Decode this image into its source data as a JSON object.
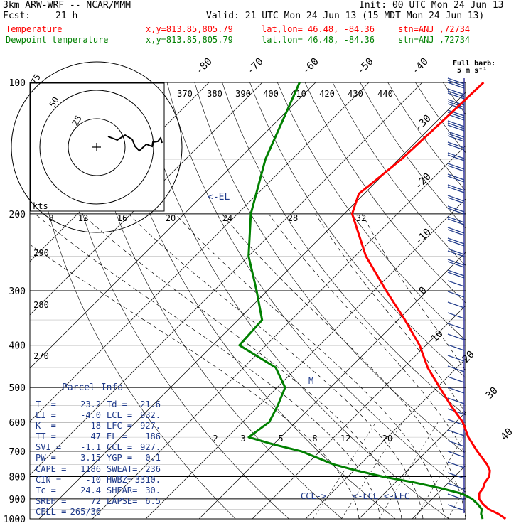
{
  "header": {
    "line1_left": "3km ARW-WRF -- NCAR/MMM",
    "line1_right": "Init: 00 UTC Mon 24 Jun 13",
    "fcst_label": "Fcst:",
    "fcst_value": "21 h",
    "valid": "Valid: 21 UTC Mon 24 Jun 13 (15 MDT Mon 24 Jun 13)",
    "temp_label": "Temperature",
    "dew_label": "Dewpoint temperature",
    "xy": "x,y=813.85,805.79",
    "latlon": "lat,lon= 46.48, -84.36",
    "stn": "stn=ANJ ,72734"
  },
  "colors": {
    "temperature": "#ff0000",
    "dewpoint": "#008000",
    "parcel_text": "#1f3a8a",
    "grid": "#000000"
  },
  "barb_legend": {
    "title": "Full barb:",
    "value": "5 m s⁻¹"
  },
  "hodograph": {
    "rings": [
      "75",
      "50",
      "25"
    ],
    "units": "kts"
  },
  "parcel_info": {
    "title": "Parcel Info",
    "rows": [
      [
        "T  =",
        "23.2",
        "Td =",
        "21.6"
      ],
      [
        "LI =",
        "-4.0",
        "LCL =",
        "932."
      ],
      [
        "K  =",
        "18",
        "LFC =",
        "927."
      ],
      [
        "TT =",
        "47",
        "EL =",
        "186"
      ],
      [
        "SVI =",
        "-1.1",
        "CCL =",
        "927."
      ],
      [
        "PW =",
        "3.15",
        "YGP =",
        "0.1"
      ],
      [
        "CAPE =",
        "1186",
        "SWEAT=",
        "236"
      ],
      [
        "CIN =",
        "-10",
        "HWBZ=",
        "3310."
      ],
      [
        "Tc =",
        "24.4",
        "SHEAR=",
        "30."
      ],
      [
        "SREH =",
        "72",
        "LAPSE=",
        "6.5"
      ],
      [
        "CELL =",
        "265/36",
        "",
        ""
      ]
    ]
  },
  "annotations": {
    "el": "EL",
    "ccl": "CCL",
    "lcl": "LCL",
    "lfc": "LFC",
    "m_marker": "M"
  },
  "chart_data": {
    "type": "line",
    "title": "Skew-T log-P sounding",
    "pressure_ticks": [
      100,
      200,
      300,
      400,
      500,
      600,
      700,
      800,
      900,
      1000
    ],
    "isotherm_labels": [
      "-80",
      "-70",
      "-60",
      "-50",
      "-40",
      "-30",
      "-20",
      "-10",
      "0",
      "10",
      "20",
      "30",
      "40"
    ],
    "theta_labels": [
      "370",
      "380",
      "390",
      "400",
      "410",
      "420",
      "430",
      "440"
    ],
    "left_theta_labels": [
      "290",
      "280",
      "270"
    ],
    "mixing_ratio_labels": [
      "8",
      "12",
      "16",
      "20",
      "24",
      "28",
      "32"
    ],
    "lower_mixing_labels": [
      "2",
      "3",
      "5",
      "8",
      "12",
      "20"
    ],
    "series": [
      {
        "name": "Temperature",
        "color": "#ff0000",
        "points": [
          [
            1000,
            27.5
          ],
          [
            975,
            25.3
          ],
          [
            950,
            22.5
          ],
          [
            925,
            20.5
          ],
          [
            900,
            18.8
          ],
          [
            875,
            17.8
          ],
          [
            850,
            17.5
          ],
          [
            825,
            16.8
          ],
          [
            800,
            16.5
          ],
          [
            775,
            15.5
          ],
          [
            750,
            13.8
          ],
          [
            700,
            9.5
          ],
          [
            650,
            5.2
          ],
          [
            600,
            1.3
          ],
          [
            550,
            -4.0
          ],
          [
            500,
            -9.5
          ],
          [
            450,
            -15.5
          ],
          [
            400,
            -21.2
          ],
          [
            350,
            -28.7
          ],
          [
            300,
            -37.7
          ],
          [
            250,
            -48.0
          ],
          [
            200,
            -58.5
          ],
          [
            180,
            -61.0
          ],
          [
            170,
            -60.5
          ],
          [
            150,
            -59.5
          ],
          [
            125,
            -59.0
          ],
          [
            100,
            -58.5
          ]
        ]
      },
      {
        "name": "Dewpoint temperature",
        "color": "#008000",
        "points": [
          [
            1000,
            23.2
          ],
          [
            975,
            22.0
          ],
          [
            950,
            21.2
          ],
          [
            925,
            19.5
          ],
          [
            900,
            17.5
          ],
          [
            875,
            14.5
          ],
          [
            850,
            9.5
          ],
          [
            825,
            3.5
          ],
          [
            800,
            -3.5
          ],
          [
            775,
            -9.5
          ],
          [
            750,
            -15.0
          ],
          [
            700,
            -23.5
          ],
          [
            675,
            -30.0
          ],
          [
            650,
            -36.0
          ],
          [
            600,
            -35.0
          ],
          [
            550,
            -36.5
          ],
          [
            500,
            -38.5
          ],
          [
            450,
            -44.0
          ],
          [
            400,
            -55.0
          ],
          [
            350,
            -55.5
          ],
          [
            300,
            -62.0
          ],
          [
            250,
            -70.0
          ],
          [
            200,
            -77.5
          ],
          [
            150,
            -85.0
          ],
          [
            100,
            -93.0
          ]
        ]
      }
    ]
  }
}
